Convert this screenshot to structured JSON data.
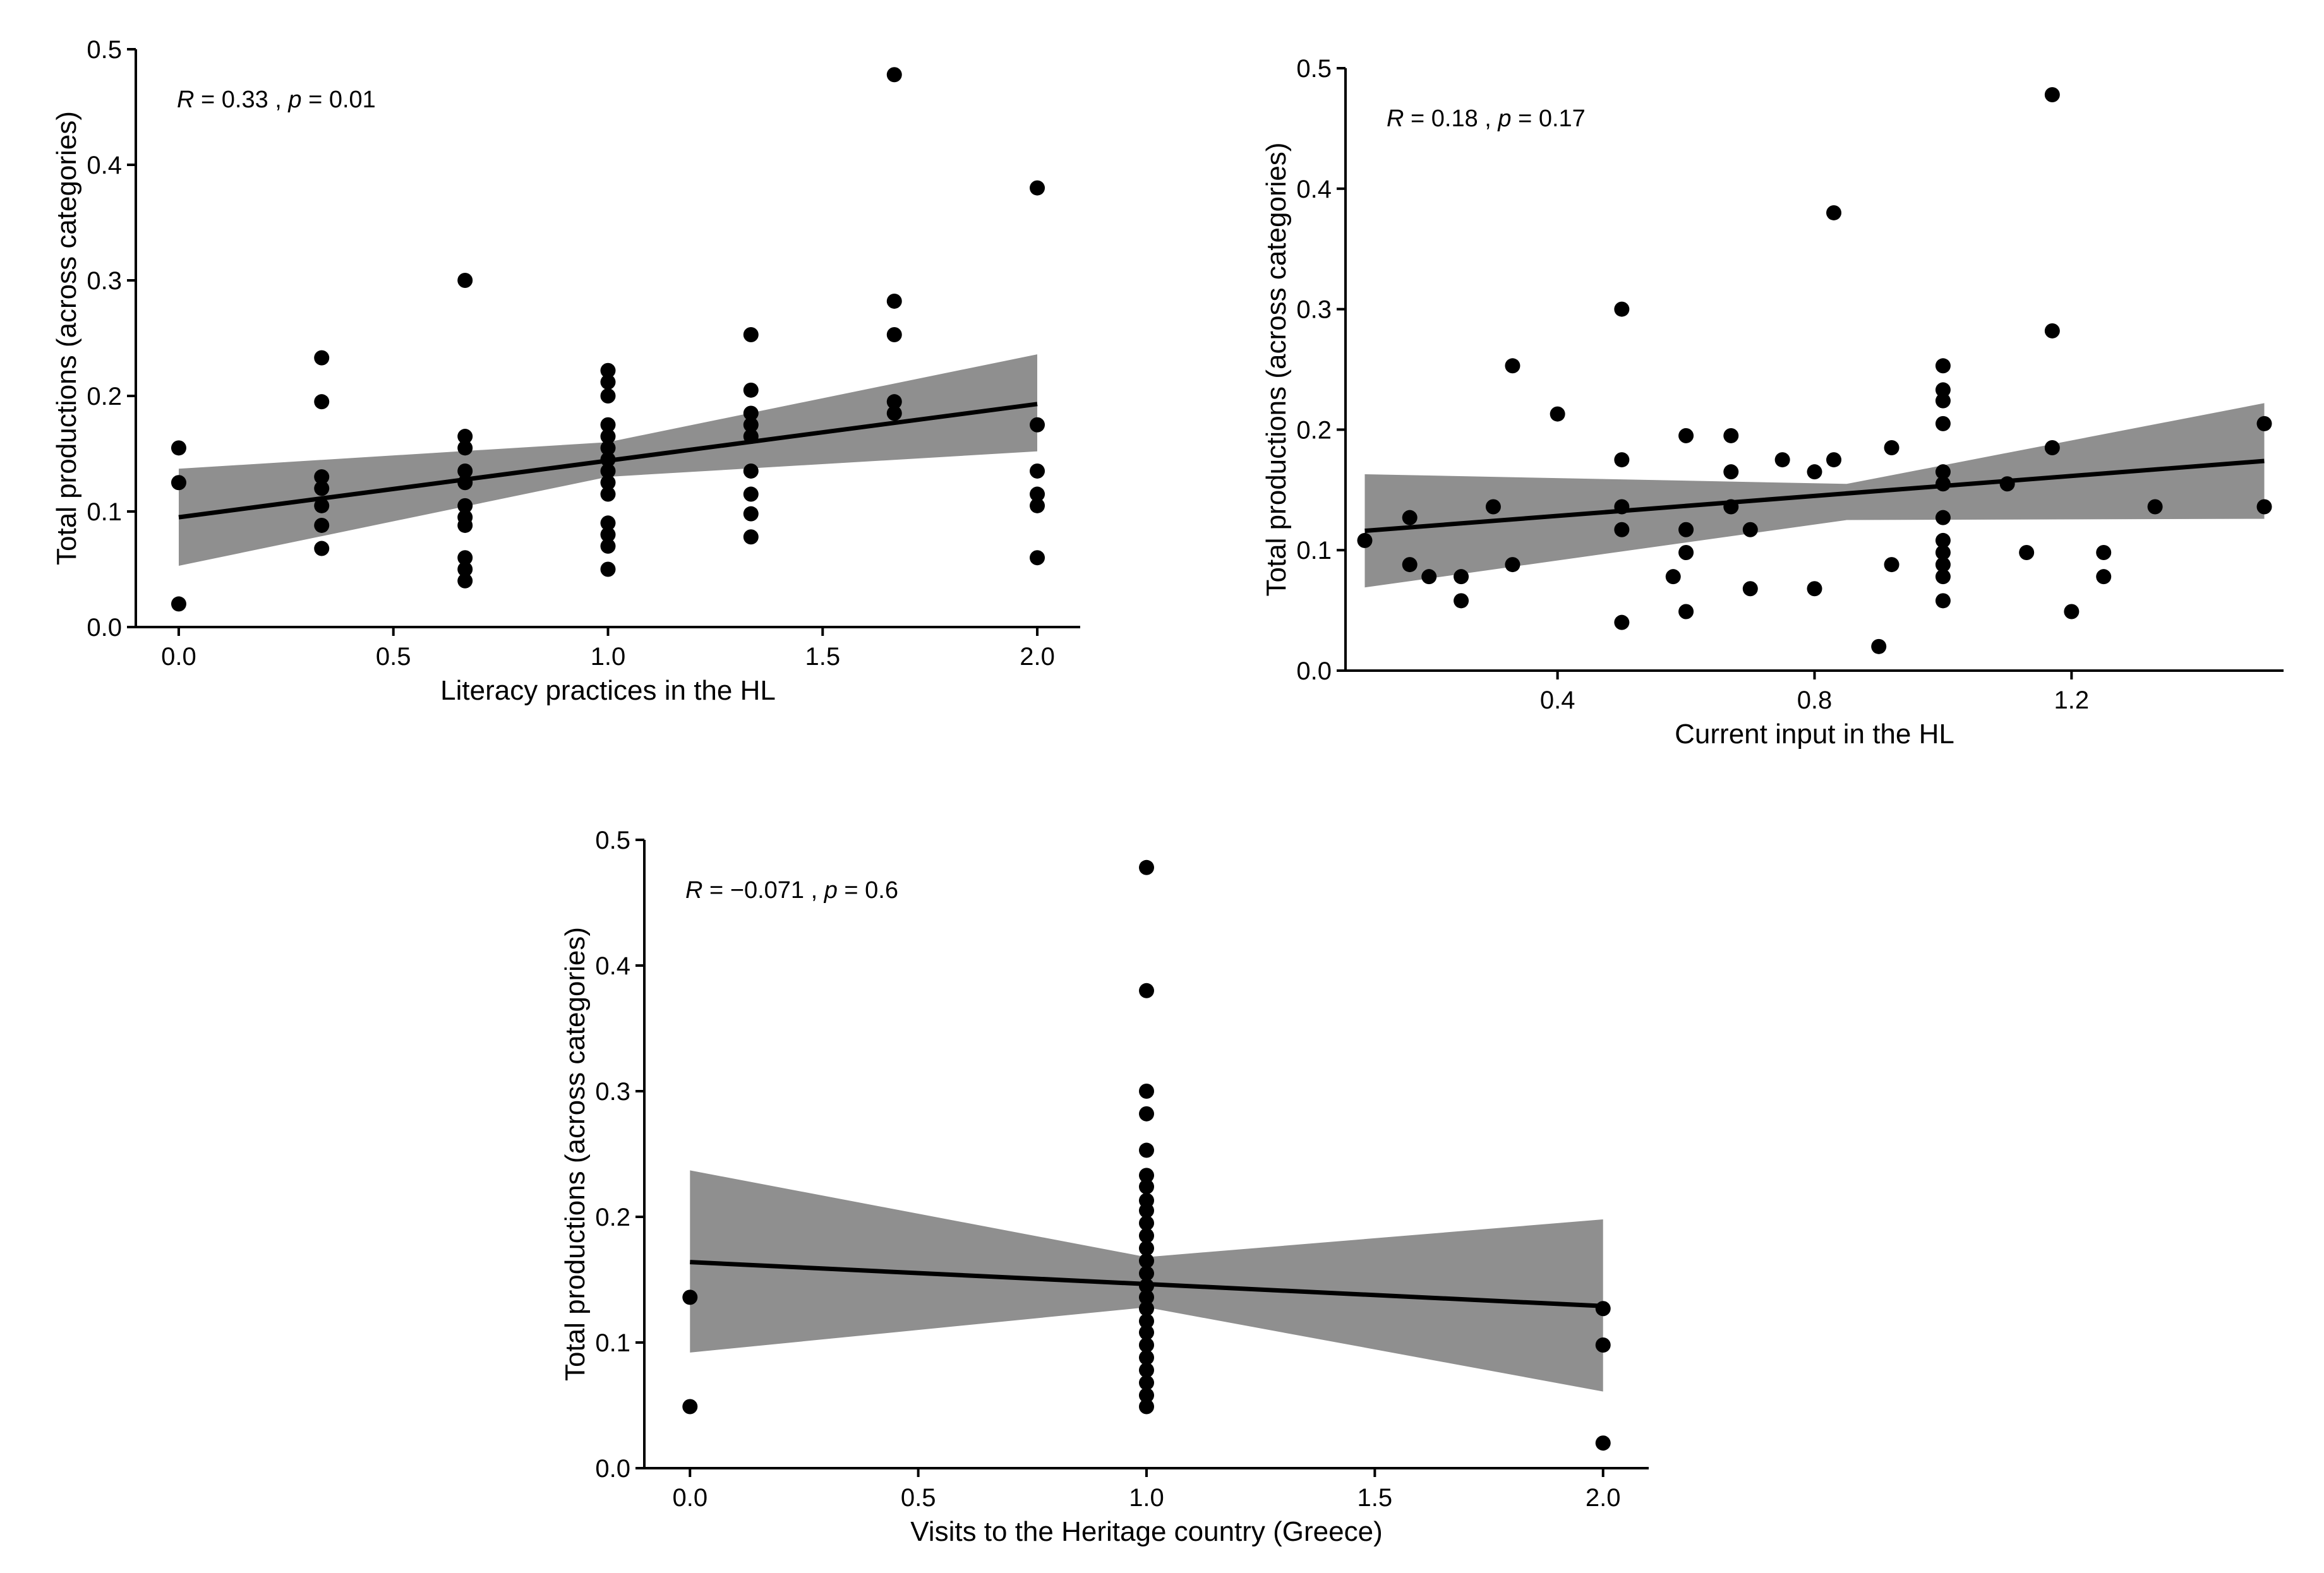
{
  "chart_data": [
    {
      "type": "scatter",
      "xlabel": "Literacy practices in the HL",
      "ylabel": "Total productions (across categories)",
      "annotation": {
        "R_symbol": "R",
        "R_value": " = 0.33 , ",
        "p_symbol": "p",
        "p_value": " = 0.01"
      },
      "xlim": [
        -0.1,
        2.1
      ],
      "ylim": [
        0.0,
        0.5
      ],
      "xticks": [
        0.0,
        0.5,
        1.0,
        1.5,
        2.0
      ],
      "xtick_labels": [
        "0.0",
        "0.5",
        "1.0",
        "1.5",
        "2.0"
      ],
      "yticks": [
        0.0,
        0.1,
        0.2,
        0.3,
        0.4,
        0.5
      ],
      "ytick_labels": [
        "0.0",
        "0.1",
        "0.2",
        "0.3",
        "0.4",
        "0.5"
      ],
      "points": [
        [
          0.0,
          0.155
        ],
        [
          0.0,
          0.125
        ],
        [
          0.0,
          0.02
        ],
        [
          0.333,
          0.233
        ],
        [
          0.333,
          0.195
        ],
        [
          0.333,
          0.13
        ],
        [
          0.333,
          0.12
        ],
        [
          0.333,
          0.105
        ],
        [
          0.333,
          0.088
        ],
        [
          0.333,
          0.068
        ],
        [
          0.667,
          0.3
        ],
        [
          0.667,
          0.165
        ],
        [
          0.667,
          0.155
        ],
        [
          0.667,
          0.135
        ],
        [
          0.667,
          0.125
        ],
        [
          0.667,
          0.105
        ],
        [
          0.667,
          0.095
        ],
        [
          0.667,
          0.088
        ],
        [
          0.667,
          0.06
        ],
        [
          0.667,
          0.05
        ],
        [
          0.667,
          0.04
        ],
        [
          1.0,
          0.222
        ],
        [
          1.0,
          0.212
        ],
        [
          1.0,
          0.2
        ],
        [
          1.0,
          0.175
        ],
        [
          1.0,
          0.165
        ],
        [
          1.0,
          0.155
        ],
        [
          1.0,
          0.145
        ],
        [
          1.0,
          0.135
        ],
        [
          1.0,
          0.125
        ],
        [
          1.0,
          0.115
        ],
        [
          1.0,
          0.09
        ],
        [
          1.0,
          0.08
        ],
        [
          1.0,
          0.07
        ],
        [
          1.0,
          0.05
        ],
        [
          1.333,
          0.253
        ],
        [
          1.333,
          0.205
        ],
        [
          1.333,
          0.185
        ],
        [
          1.333,
          0.175
        ],
        [
          1.333,
          0.165
        ],
        [
          1.333,
          0.135
        ],
        [
          1.333,
          0.115
        ],
        [
          1.333,
          0.098
        ],
        [
          1.333,
          0.078
        ],
        [
          1.667,
          0.478
        ],
        [
          1.667,
          0.282
        ],
        [
          1.667,
          0.253
        ],
        [
          1.667,
          0.195
        ],
        [
          1.667,
          0.185
        ],
        [
          2.0,
          0.38
        ],
        [
          2.0,
          0.175
        ],
        [
          2.0,
          0.135
        ],
        [
          2.0,
          0.115
        ],
        [
          2.0,
          0.105
        ],
        [
          2.0,
          0.06
        ]
      ],
      "fit_line": {
        "x": [
          0.0,
          2.0
        ],
        "y": [
          0.095,
          0.193
        ]
      },
      "ci_band": {
        "x": [
          0.0,
          1.0,
          2.0
        ],
        "lower": [
          0.053,
          0.13,
          0.152
        ],
        "upper": [
          0.137,
          0.16,
          0.236
        ]
      },
      "band_color": "#8f8f8f",
      "point_color": "#000000",
      "grid": false
    },
    {
      "type": "scatter",
      "xlabel": "Current input in the HL",
      "ylabel": "Total productions (across categories)",
      "annotation": {
        "R_symbol": "R",
        "R_value": " = 0.18 , ",
        "p_symbol": "p",
        "p_value": " = 0.17"
      },
      "xlim": [
        0.07,
        1.53
      ],
      "ylim": [
        0.0,
        0.5
      ],
      "xticks": [
        0.4,
        0.8,
        1.2
      ],
      "xtick_labels": [
        "0.4",
        "0.8",
        "1.2"
      ],
      "yticks": [
        0.0,
        0.1,
        0.2,
        0.3,
        0.4,
        0.5
      ],
      "ytick_labels": [
        "0.0",
        "0.1",
        "0.2",
        "0.3",
        "0.4",
        "0.5"
      ],
      "points": [
        [
          0.1,
          0.108
        ],
        [
          0.17,
          0.127
        ],
        [
          0.17,
          0.088
        ],
        [
          0.2,
          0.078
        ],
        [
          0.25,
          0.078
        ],
        [
          0.25,
          0.058
        ],
        [
          0.3,
          0.136
        ],
        [
          0.33,
          0.253
        ],
        [
          0.33,
          0.088
        ],
        [
          0.4,
          0.213
        ],
        [
          0.5,
          0.3
        ],
        [
          0.5,
          0.175
        ],
        [
          0.5,
          0.136
        ],
        [
          0.5,
          0.117
        ],
        [
          0.5,
          0.04
        ],
        [
          0.58,
          0.078
        ],
        [
          0.6,
          0.195
        ],
        [
          0.6,
          0.117
        ],
        [
          0.6,
          0.098
        ],
        [
          0.6,
          0.049
        ],
        [
          0.67,
          0.195
        ],
        [
          0.67,
          0.165
        ],
        [
          0.67,
          0.136
        ],
        [
          0.7,
          0.117
        ],
        [
          0.7,
          0.068
        ],
        [
          0.75,
          0.175
        ],
        [
          0.8,
          0.165
        ],
        [
          0.8,
          0.068
        ],
        [
          0.83,
          0.38
        ],
        [
          0.83,
          0.175
        ],
        [
          0.9,
          0.02
        ],
        [
          0.92,
          0.185
        ],
        [
          0.92,
          0.088
        ],
        [
          1.0,
          0.253
        ],
        [
          1.0,
          0.233
        ],
        [
          1.0,
          0.224
        ],
        [
          1.0,
          0.205
        ],
        [
          1.0,
          0.165
        ],
        [
          1.0,
          0.155
        ],
        [
          1.0,
          0.127
        ],
        [
          1.0,
          0.108
        ],
        [
          1.0,
          0.098
        ],
        [
          1.0,
          0.088
        ],
        [
          1.0,
          0.078
        ],
        [
          1.0,
          0.058
        ],
        [
          1.1,
          0.155
        ],
        [
          1.13,
          0.098
        ],
        [
          1.17,
          0.478
        ],
        [
          1.17,
          0.282
        ],
        [
          1.17,
          0.185
        ],
        [
          1.2,
          0.049
        ],
        [
          1.25,
          0.098
        ],
        [
          1.25,
          0.078
        ],
        [
          1.33,
          0.136
        ],
        [
          1.5,
          0.205
        ],
        [
          1.5,
          0.136
        ]
      ],
      "fit_line": {
        "x": [
          0.1,
          1.5
        ],
        "y": [
          0.116,
          0.174
        ]
      },
      "ci_band": {
        "x": [
          0.1,
          0.85,
          1.5
        ],
        "lower": [
          0.069,
          0.125,
          0.126
        ],
        "upper": [
          0.163,
          0.155,
          0.222
        ]
      },
      "band_color": "#8f8f8f",
      "point_color": "#000000",
      "grid": false
    },
    {
      "type": "scatter",
      "xlabel": "Visits to the Heritage country (Greece)",
      "ylabel": "Total productions (across categories)",
      "annotation": {
        "R_symbol": "R",
        "R_value": " = −0.071 , ",
        "p_symbol": "p",
        "p_value": " = 0.6"
      },
      "xlim": [
        -0.1,
        2.1
      ],
      "ylim": [
        0.0,
        0.5
      ],
      "xticks": [
        0.0,
        0.5,
        1.0,
        1.5,
        2.0
      ],
      "xtick_labels": [
        "0.0",
        "0.5",
        "1.0",
        "1.5",
        "2.0"
      ],
      "yticks": [
        0.0,
        0.1,
        0.2,
        0.3,
        0.4,
        0.5
      ],
      "ytick_labels": [
        "0.0",
        "0.1",
        "0.2",
        "0.3",
        "0.4",
        "0.5"
      ],
      "points": [
        [
          0.0,
          0.136
        ],
        [
          0.0,
          0.049
        ],
        [
          1.0,
          0.478
        ],
        [
          1.0,
          0.38
        ],
        [
          1.0,
          0.3
        ],
        [
          1.0,
          0.282
        ],
        [
          1.0,
          0.253
        ],
        [
          1.0,
          0.233
        ],
        [
          1.0,
          0.224
        ],
        [
          1.0,
          0.213
        ],
        [
          1.0,
          0.205
        ],
        [
          1.0,
          0.195
        ],
        [
          1.0,
          0.185
        ],
        [
          1.0,
          0.175
        ],
        [
          1.0,
          0.165
        ],
        [
          1.0,
          0.155
        ],
        [
          1.0,
          0.145
        ],
        [
          1.0,
          0.136
        ],
        [
          1.0,
          0.127
        ],
        [
          1.0,
          0.117
        ],
        [
          1.0,
          0.108
        ],
        [
          1.0,
          0.098
        ],
        [
          1.0,
          0.088
        ],
        [
          1.0,
          0.078
        ],
        [
          1.0,
          0.068
        ],
        [
          1.0,
          0.058
        ],
        [
          1.0,
          0.049
        ],
        [
          2.0,
          0.127
        ],
        [
          2.0,
          0.098
        ],
        [
          2.0,
          0.02
        ]
      ],
      "fit_line": {
        "x": [
          0.0,
          2.0
        ],
        "y": [
          0.164,
          0.129
        ]
      },
      "ci_band": {
        "x": [
          0.0,
          1.0,
          2.0
        ],
        "lower": [
          0.092,
          0.128,
          0.061
        ],
        "upper": [
          0.237,
          0.168,
          0.198
        ]
      },
      "band_color": "#8f8f8f",
      "point_color": "#000000",
      "grid": false
    }
  ]
}
